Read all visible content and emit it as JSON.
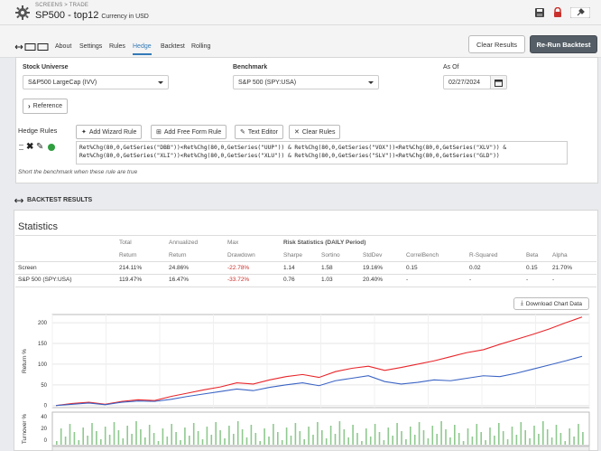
{
  "header": {
    "breadcrumb": "SCREENS > TRADE",
    "title": "SP500 - top12",
    "currency": "Currency in USD"
  },
  "tabs": [
    "About",
    "Settings",
    "Rules",
    "Hedge",
    "Backtest",
    "Rolling"
  ],
  "active_tab": "Hedge",
  "buttons": {
    "clear_results": "Clear Results",
    "rerun": "Re-Run Backtest"
  },
  "form": {
    "stock_universe_label": "Stock Universe",
    "stock_universe_value": "S&P500 LargeCap (IVV)",
    "benchmark_label": "Benchmark",
    "benchmark_value": "S&P 500 (SPY:USA)",
    "as_of_label": "As Of",
    "as_of_value": "02/27/2024",
    "reference_label": "Reference"
  },
  "hedge": {
    "title": "Hedge Rules",
    "buttons": [
      "Add Wizard Rule",
      "Add Free Form Rule",
      "Text Editor",
      "Clear Rules"
    ],
    "rule_line1": "Ret%Chg(80,0,GetSeries(\"DBB\"))<Ret%Chg(80,0,GetSeries(\"UUP\")) & Ret%Chg(80,0,GetSeries(\"VOX\"))<Ret%Chg(80,0,GetSeries(\"XLV\")) &",
    "rule_line2": "Ret%Chg(80,0,GetSeries(\"XLI\"))<Ret%Chg(80,0,GetSeries(\"XLU\")) & Ret%Chg(80,0,GetSeries(\"SLV\"))<Ret%Chg(80,0,GetSeries(\"GLD\"))",
    "note": "Short the benchmark when these rule are true"
  },
  "results": {
    "section_title": "BACKTEST RESULTS",
    "statistics_title": "Statistics",
    "header_top": {
      "total": "Total",
      "annualized": "Annualized",
      "max": "Max",
      "risk": "Risk Statistics (DAILY Period)"
    },
    "header_bottom": [
      "Return",
      "Return",
      "Drawdown",
      "Sharpe",
      "Sortino",
      "StdDev",
      "CorrelBench",
      "R-Squared",
      "Beta",
      "Alpha"
    ],
    "rows": [
      {
        "name": "Screen",
        "values": [
          "214.11%",
          "24.86%",
          "-22.78%",
          "1.14",
          "1.58",
          "19.16%",
          "0.15",
          "0.02",
          "0.15",
          "21.70%"
        ]
      },
      {
        "name": "S&P 500 (SPY:USA)",
        "values": [
          "119.47%",
          "16.47%",
          "-33.72%",
          "0.76",
          "1.03",
          "20.40%",
          "-",
          "-",
          "-",
          "-"
        ]
      }
    ],
    "download_label": "Download Chart Data"
  },
  "chart_data": {
    "type": "line",
    "ylabel": "Return %",
    "y_ticks": [
      0,
      50,
      100,
      150,
      200
    ],
    "ylim": [
      -5,
      220
    ],
    "series": [
      {
        "name": "Screen",
        "color": "#e8262b",
        "values": [
          0,
          5,
          8,
          3,
          10,
          14,
          12,
          22,
          30,
          38,
          45,
          55,
          52,
          62,
          70,
          75,
          68,
          82,
          90,
          95,
          85,
          92,
          100,
          108,
          118,
          128,
          135,
          148,
          160,
          172,
          185,
          200,
          214
        ]
      },
      {
        "name": "S&P 500 (SPY:USA)",
        "color": "#3b64c4",
        "values": [
          0,
          3,
          6,
          2,
          8,
          11,
          10,
          15,
          22,
          28,
          34,
          40,
          36,
          44,
          50,
          55,
          48,
          60,
          66,
          72,
          58,
          52,
          56,
          62,
          60,
          66,
          72,
          70,
          78,
          88,
          98,
          108,
          119
        ]
      }
    ],
    "turnover_label": "Turnover %",
    "turnover_ticks": [
      40,
      20,
      0
    ]
  },
  "colors": {
    "accent": "#337ab7",
    "dark_button": "#555e66",
    "negative": "#c9302c",
    "green": "#2e9e3f"
  }
}
